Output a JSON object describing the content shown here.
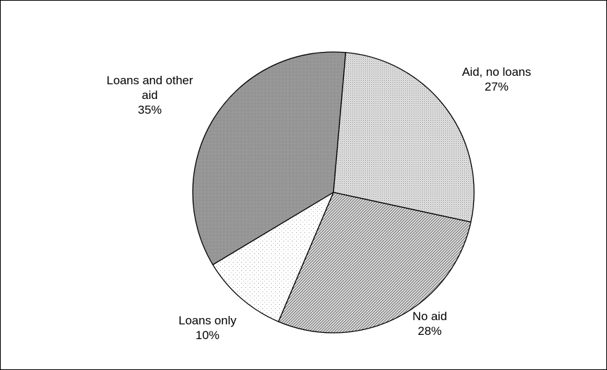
{
  "chart_data": {
    "type": "pie",
    "title": "",
    "slices": [
      {
        "label": "Aid, no loans",
        "label_lines": [
          "Aid, no loans"
        ],
        "value": 27,
        "value_label": "27%",
        "pattern": "dots-light",
        "color": "#d4d4d4"
      },
      {
        "label": "No aid",
        "label_lines": [
          "No aid"
        ],
        "value": 28,
        "value_label": "28%",
        "pattern": "diagonal",
        "color": "#bdbdbd"
      },
      {
        "label": "Loans only",
        "label_lines": [
          "Loans only"
        ],
        "value": 10,
        "value_label": "10%",
        "pattern": "sparse-dots",
        "color": "#f2f2f2"
      },
      {
        "label": "Loans and other aid",
        "label_lines": [
          "Loans and other",
          "aid"
        ],
        "value": 35,
        "value_label": "35%",
        "pattern": "dense-dark",
        "color": "#9a9a9a"
      }
    ]
  }
}
